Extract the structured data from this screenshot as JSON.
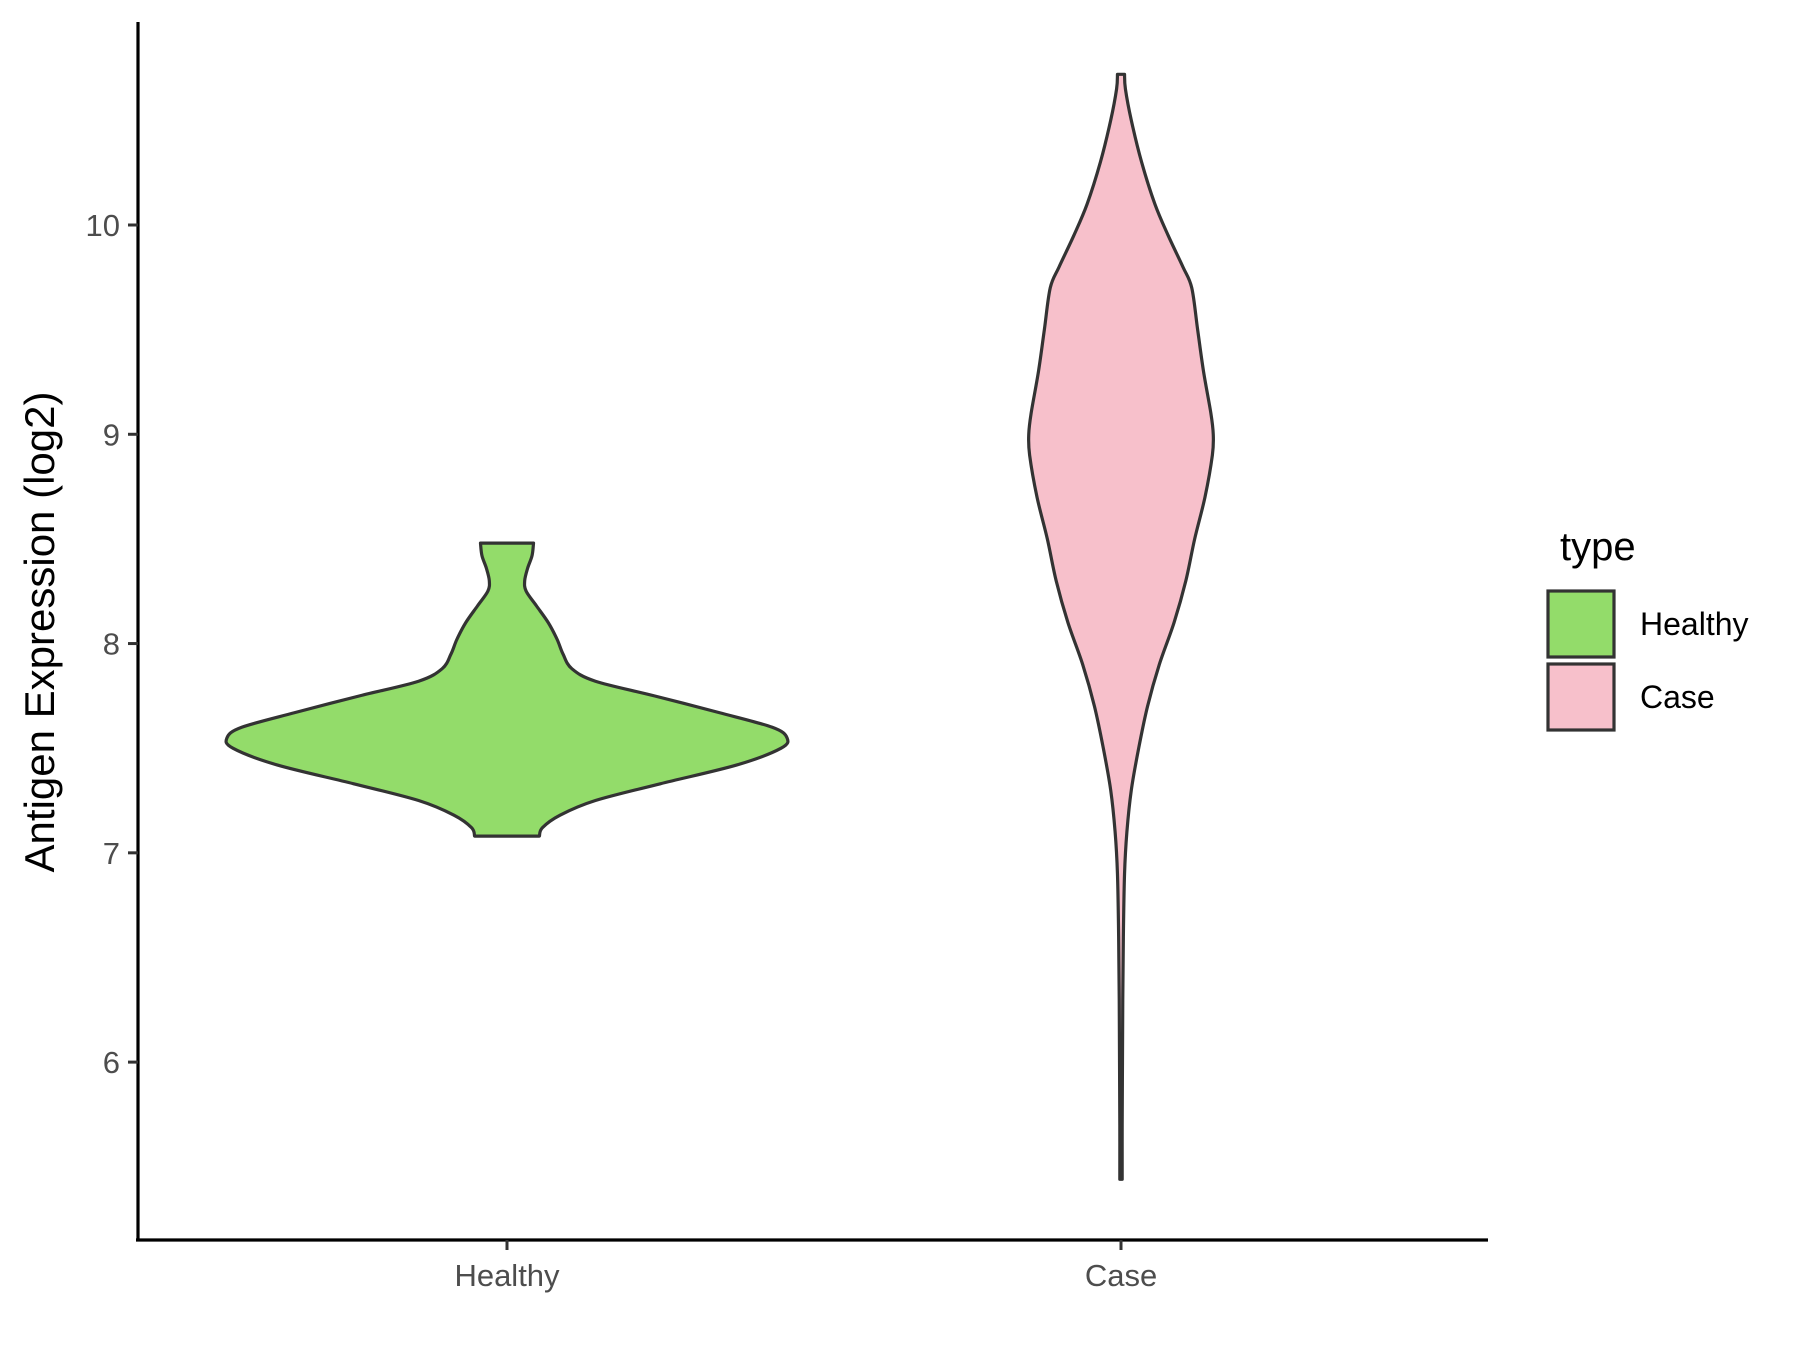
{
  "chart_data": {
    "type": "violin",
    "title": "",
    "xlabel": "",
    "ylabel": "Antigen Expression (log2)",
    "categories": [
      "Healthy",
      "Case"
    ],
    "yticks": [
      6,
      7,
      8,
      9,
      10
    ],
    "ylim": [
      5.15,
      10.97
    ],
    "grid": false,
    "legend": {
      "title": "type",
      "position": "right",
      "entries": [
        {
          "label": "Healthy",
          "color": "#93dc6a"
        },
        {
          "label": "Case",
          "color": "#f7c0cb"
        }
      ]
    },
    "outline_color": "#333333",
    "series": [
      {
        "name": "Healthy",
        "color": "#93dc6a",
        "ymin": 7.08,
        "ymax": 8.48,
        "density_profile": [
          [
            7.08,
            0.11
          ],
          [
            7.12,
            0.12
          ],
          [
            7.18,
            0.18
          ],
          [
            7.25,
            0.3
          ],
          [
            7.33,
            0.52
          ],
          [
            7.42,
            0.78
          ],
          [
            7.5,
            0.93
          ],
          [
            7.55,
            0.95
          ],
          [
            7.6,
            0.9
          ],
          [
            7.67,
            0.72
          ],
          [
            7.75,
            0.5
          ],
          [
            7.82,
            0.3
          ],
          [
            7.88,
            0.22
          ],
          [
            7.95,
            0.19
          ],
          [
            8.02,
            0.17
          ],
          [
            8.1,
            0.14
          ],
          [
            8.18,
            0.1
          ],
          [
            8.25,
            0.065
          ],
          [
            8.3,
            0.06
          ],
          [
            8.36,
            0.07
          ],
          [
            8.42,
            0.085
          ],
          [
            8.48,
            0.09
          ]
        ]
      },
      {
        "name": "Case",
        "color": "#f7c0cb",
        "ymin": 5.44,
        "ymax": 10.72,
        "density_profile": [
          [
            5.44,
            0.004
          ],
          [
            5.7,
            0.004
          ],
          [
            6.0,
            0.005
          ],
          [
            6.3,
            0.006
          ],
          [
            6.6,
            0.008
          ],
          [
            6.9,
            0.012
          ],
          [
            7.1,
            0.02
          ],
          [
            7.3,
            0.035
          ],
          [
            7.5,
            0.06
          ],
          [
            7.7,
            0.09
          ],
          [
            7.9,
            0.13
          ],
          [
            8.1,
            0.18
          ],
          [
            8.3,
            0.22
          ],
          [
            8.5,
            0.25
          ],
          [
            8.7,
            0.285
          ],
          [
            8.9,
            0.31
          ],
          [
            9.0,
            0.313
          ],
          [
            9.1,
            0.305
          ],
          [
            9.3,
            0.28
          ],
          [
            9.5,
            0.26
          ],
          [
            9.7,
            0.24
          ],
          [
            9.8,
            0.21
          ],
          [
            9.95,
            0.16
          ],
          [
            10.1,
            0.115
          ],
          [
            10.3,
            0.07
          ],
          [
            10.5,
            0.035
          ],
          [
            10.65,
            0.015
          ],
          [
            10.72,
            0.012
          ]
        ]
      }
    ]
  }
}
